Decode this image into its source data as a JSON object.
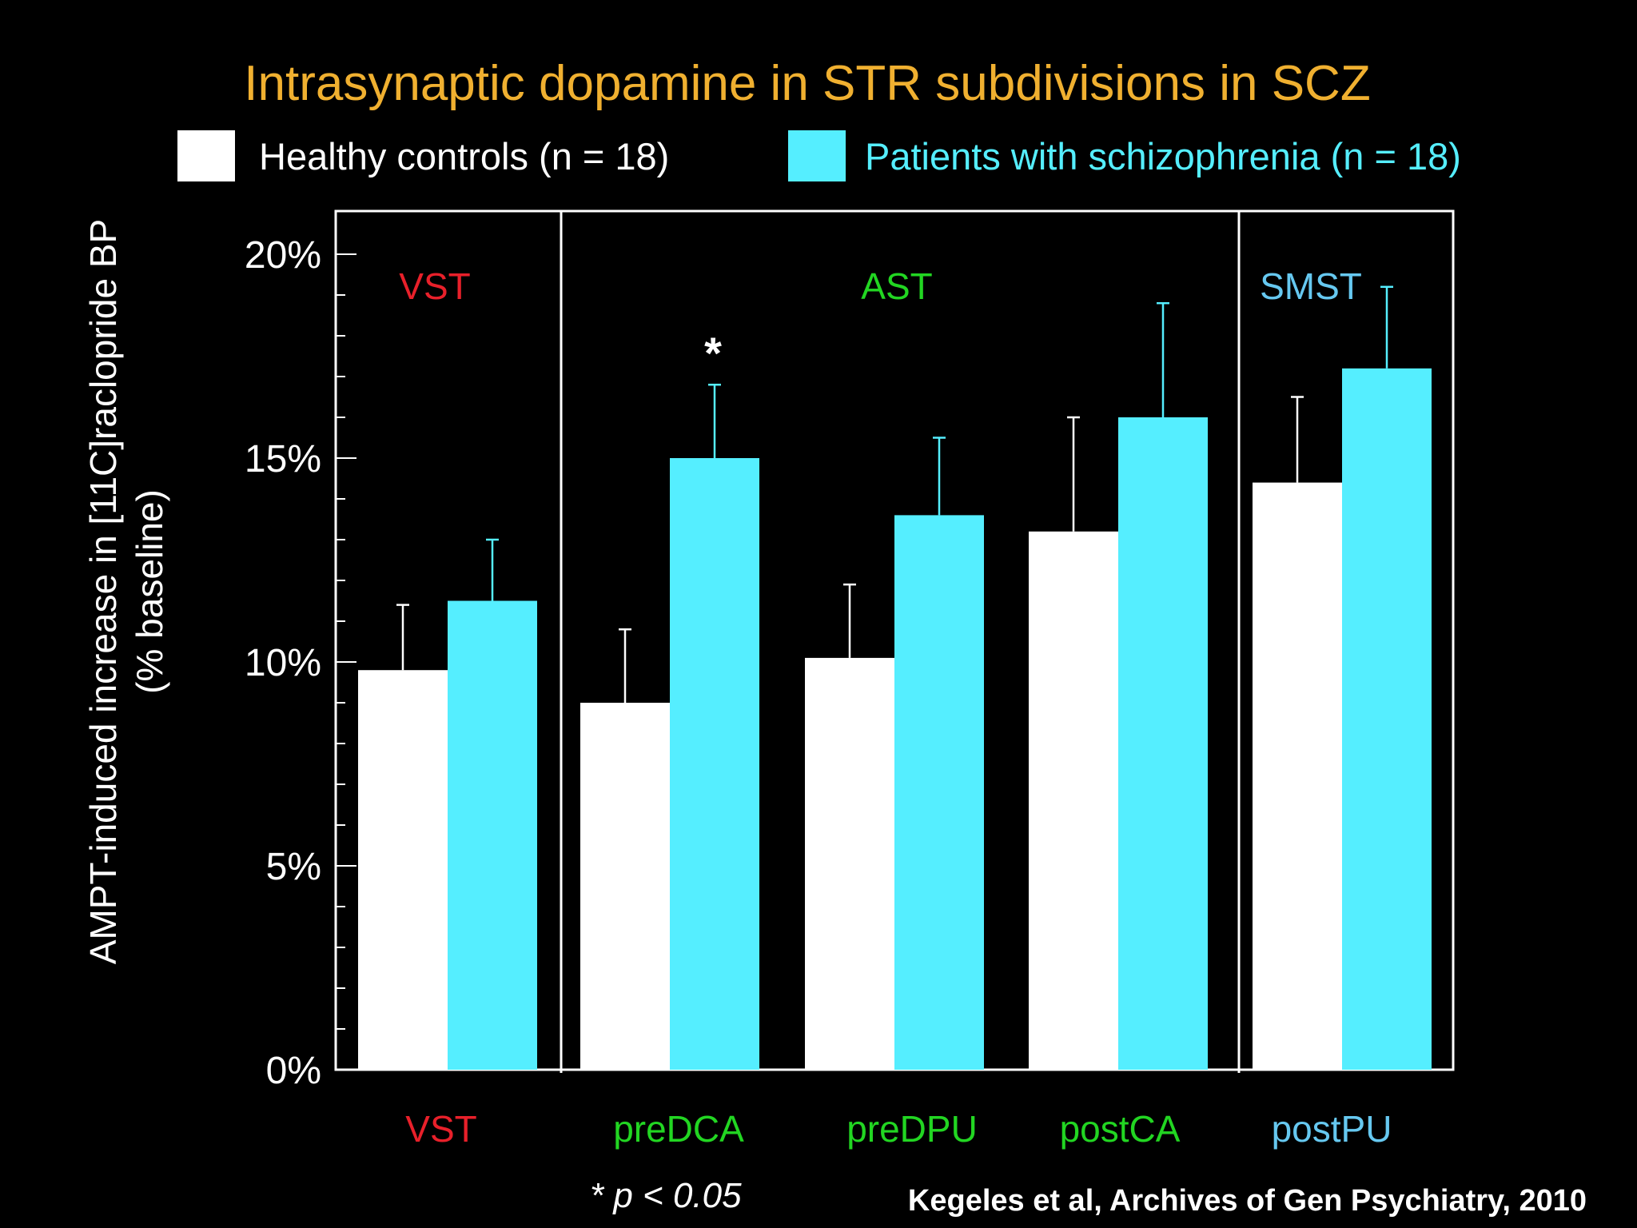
{
  "colors": {
    "background": "#000000",
    "title": "#F0B030",
    "control_bar": "#FFFFFF",
    "patient_bar": "#55EEFF",
    "legend_patient_text": "#55EEFF",
    "vst": "#E8202A",
    "ast": "#22D622",
    "smst": "#66C8F0",
    "axis": "#FFFFFF"
  },
  "chart_data": {
    "type": "bar",
    "title": "Intrasynaptic dopamine in STR subdivisions in SCZ",
    "ylabel_line1": "AMPT-induced increase in [11C]raclopride BP",
    "ylabel_line2": "(% baseline)",
    "ylim": [
      0,
      21
    ],
    "yticks": [
      {
        "value": 0,
        "label": "0%"
      },
      {
        "value": 5,
        "label": "5%"
      },
      {
        "value": 10,
        "label": "10%"
      },
      {
        "value": 15,
        "label": "15%"
      },
      {
        "value": 20,
        "label": "20%"
      }
    ],
    "categories": [
      "VST",
      "preDCA",
      "preDPU",
      "postCA",
      "postPU"
    ],
    "category_colors": [
      "vst",
      "ast",
      "ast",
      "ast",
      "smst"
    ],
    "series": [
      {
        "name": "Healthy controls (n = 18)",
        "color": "control_bar",
        "values": [
          9.8,
          9.0,
          10.1,
          13.2,
          14.4
        ],
        "errors": [
          1.6,
          1.8,
          1.8,
          2.8,
          2.1
        ]
      },
      {
        "name": "Patients with schizophrenia (n = 18)",
        "color": "patient_bar",
        "values": [
          11.5,
          15.0,
          13.6,
          16.0,
          17.2
        ],
        "errors": [
          1.5,
          1.8,
          1.9,
          2.8,
          2.0
        ]
      }
    ],
    "regions": [
      {
        "label": "VST",
        "color": "vst",
        "categories": [
          0
        ]
      },
      {
        "label": "AST",
        "color": "ast",
        "categories": [
          1,
          2,
          3
        ]
      },
      {
        "label": "SMST",
        "color": "smst",
        "categories": [
          4
        ]
      }
    ],
    "significance": [
      {
        "category": 1,
        "series": 1,
        "marker": "*"
      }
    ],
    "grid": false,
    "legend_position": "top"
  },
  "footnote": "* p < 0.05",
  "citation": "Kegeles et al, Archives of Gen Psychiatry, 2010"
}
